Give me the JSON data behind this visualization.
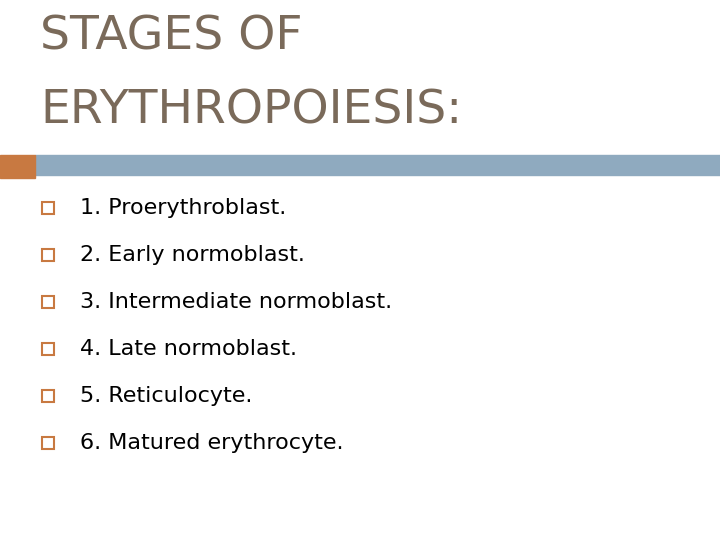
{
  "title_line1": "STAGES OF",
  "title_line2": "ERYTHROPOIESIS:",
  "title_color": "#7a6a5a",
  "background_color": "#ffffff",
  "left_bar_color": "#c87941",
  "divider_color": "#8faabf",
  "bullet_items": [
    "1. Proerythroblast.",
    "2. Early normoblast.",
    "3. Intermediate normoblast.",
    "4. Late normoblast.",
    "5. Reticulocyte.",
    "6. Matured erythrocyte."
  ],
  "bullet_text_color": "#000000",
  "bullet_square_color": "#c87941",
  "bullet_fontsize": 16,
  "title_fontsize": 34,
  "figsize": [
    7.2,
    5.4
  ],
  "dpi": 100
}
